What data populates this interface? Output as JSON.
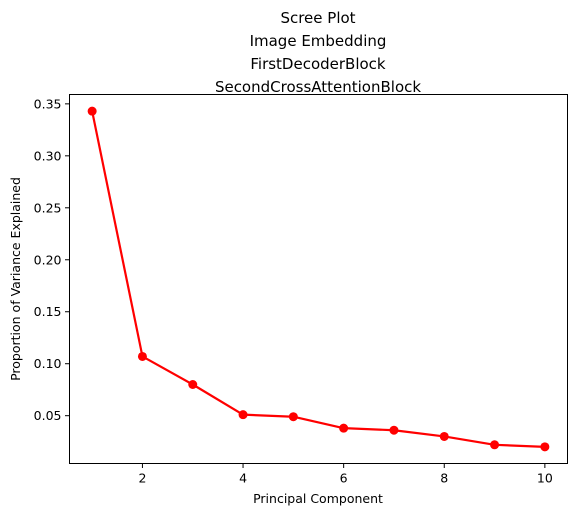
{
  "chart_data": {
    "type": "line",
    "title_lines": [
      "Scree Plot",
      "Image Embedding",
      "FirstDecoderBlock",
      "SecondCrossAttentionBlock"
    ],
    "xlabel": "Principal Component",
    "ylabel": "Proportion of Variance Explained",
    "xlim": [
      0.55,
      10.45
    ],
    "ylim": [
      0.004,
      0.359
    ],
    "xticks": [
      2,
      4,
      6,
      8,
      10
    ],
    "xtick_labels": [
      "2",
      "4",
      "6",
      "8",
      "10"
    ],
    "yticks": [
      0.05,
      0.1,
      0.15,
      0.2,
      0.25,
      0.3,
      0.35
    ],
    "ytick_labels": [
      "0.05",
      "0.10",
      "0.15",
      "0.20",
      "0.25",
      "0.30",
      "0.35"
    ],
    "grid": false,
    "series": [
      {
        "color": "#ff0000",
        "marker": "circle",
        "x": [
          1,
          2,
          3,
          4,
          5,
          6,
          7,
          8,
          9,
          10
        ],
        "y": [
          0.343,
          0.107,
          0.08,
          0.051,
          0.049,
          0.038,
          0.036,
          0.03,
          0.022,
          0.02
        ]
      }
    ]
  }
}
